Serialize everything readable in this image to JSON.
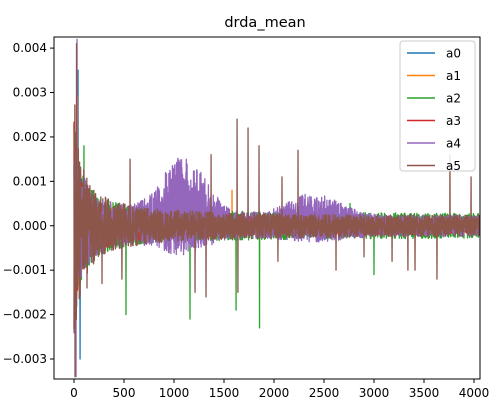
{
  "chart_data": {
    "type": "line",
    "title": "drda_mean",
    "xlabel": "",
    "ylabel": "",
    "xlim": [
      -200,
      4060
    ],
    "ylim": [
      -0.00345,
      0.00425
    ],
    "x_ticks": [
      0,
      500,
      1000,
      1500,
      2000,
      2500,
      3000,
      3500,
      4000
    ],
    "x_tick_labels": [
      "0",
      "500",
      "1000",
      "1500",
      "2000",
      "2500",
      "3000",
      "3500",
      "4000"
    ],
    "y_ticks": [
      -0.003,
      -0.002,
      -0.001,
      0.0,
      0.001,
      0.002,
      0.003,
      0.004
    ],
    "y_tick_labels": [
      "−0.003",
      "−0.002",
      "−0.001",
      "0.000",
      "0.001",
      "0.002",
      "0.003",
      "0.004"
    ],
    "grid": false,
    "legend_position": "top-right",
    "x_range": [
      0,
      4050
    ],
    "series": [
      {
        "name": "a0",
        "color": "#1f77b4",
        "noise": [
          0.0022,
          0.00015
        ],
        "spikes": [
          [
            40,
            0.0035
          ],
          [
            60,
            -0.003
          ]
        ]
      },
      {
        "name": "a1",
        "color": "#ff7f0e",
        "noise": [
          0.0022,
          0.00015
        ],
        "spikes": [
          [
            35,
            0.0029
          ],
          [
            1580,
            0.0008
          ],
          [
            830,
            0.0004
          ]
        ]
      },
      {
        "name": "a2",
        "color": "#2ca02c",
        "noise": [
          0.0024,
          0.00025
        ],
        "spikes": [
          [
            100,
            0.0018
          ],
          [
            1160,
            -0.0021
          ],
          [
            1620,
            -0.0019
          ],
          [
            1855,
            -0.0023
          ],
          [
            2020,
            0.0002
          ],
          [
            2760,
            0.0005
          ],
          [
            3000,
            -0.0011
          ],
          [
            1000,
            0.0009
          ],
          [
            520,
            -0.002
          ]
        ]
      },
      {
        "name": "a3",
        "color": "#d62728",
        "noise": [
          0.0022,
          0.00015
        ],
        "spikes": [
          [
            1260,
            -0.0002
          ],
          [
            1280,
            -0.0002
          ],
          [
            200,
            -0.0003
          ]
        ]
      },
      {
        "name": "a4",
        "color": "#9467bd",
        "noise": [
          0.0026,
          0.0002
        ],
        "spikes": [
          [
            30,
            0.0042
          ],
          [
            20,
            -0.0034
          ],
          [
            1150,
            0.0009
          ],
          [
            1000,
            0.0008
          ]
        ],
        "bumps": [
          [
            1100,
            600,
            0.00045,
            0.0016
          ],
          [
            2400,
            700,
            0.00018,
            0.0006
          ]
        ]
      },
      {
        "name": "a5",
        "color": "#8c564b",
        "noise": [
          0.003,
          0.0002
        ],
        "spikes": [
          [
            10,
            -0.0034
          ],
          [
            25,
            0.0041
          ],
          [
            1630,
            0.0024
          ],
          [
            1740,
            0.0022
          ],
          [
            1850,
            0.0018
          ],
          [
            2240,
            0.0017
          ],
          [
            1370,
            0.0016
          ],
          [
            3760,
            0.0016
          ],
          [
            560,
            0.0015
          ],
          [
            2080,
            0.0011
          ],
          [
            3970,
            0.0011
          ],
          [
            1320,
            -0.0016
          ],
          [
            1640,
            -0.0015
          ],
          [
            1210,
            -0.0015
          ],
          [
            3630,
            -0.0012
          ],
          [
            3410,
            -0.001
          ],
          [
            2620,
            -0.001
          ],
          [
            2040,
            -0.0008
          ],
          [
            2900,
            -0.0007
          ],
          [
            3180,
            -0.0008
          ],
          [
            3340,
            -0.001
          ],
          [
            130,
            -0.0014
          ],
          [
            280,
            -0.0013
          ],
          [
            480,
            -0.0012
          ]
        ]
      }
    ]
  }
}
